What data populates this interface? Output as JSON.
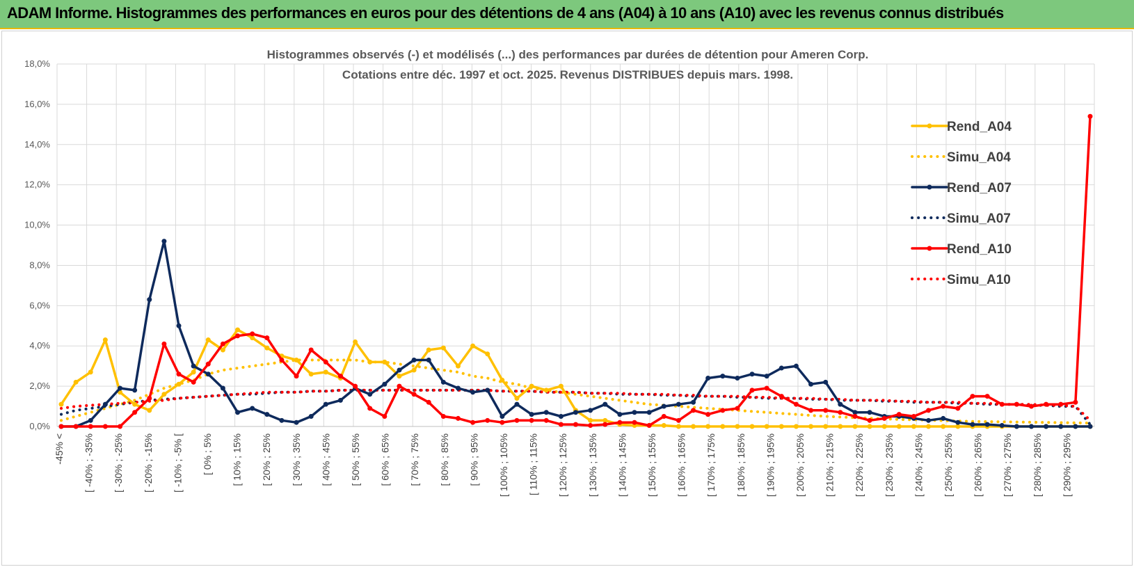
{
  "banner": {
    "title": "ADAM Informe. Histogrammes des performances en euros pour des détentions de 4 ans (A04) à 10 ans (A10) avec les revenus connus distribués",
    "background": "#7dc87d",
    "accent": "#e8b800"
  },
  "chart_data": {
    "type": "line",
    "title_lines": [
      "Histogrammes observés (-) et modélisés (...) des performances par durées de détention pour Ameren Corp.",
      "Cotations entre déc. 1997 et oct. 2025. Revenus DISTRIBUES depuis mars. 1998."
    ],
    "ylim": [
      0,
      18
    ],
    "yticks": [
      0,
      2,
      4,
      6,
      8,
      10,
      12,
      14,
      16,
      18
    ],
    "ytick_labels": [
      "0,0%",
      "2,0%",
      "4,0%",
      "6,0%",
      "8,0%",
      "10,0%",
      "12,0%",
      "14,0%",
      "16,0%",
      "18,0%"
    ],
    "grid": true,
    "legend_position": "top-right",
    "x_labels": [
      "-45% <",
      "[ -40% ; -35%",
      "[ -30% ; -25%",
      "[ -20% ; -15%",
      "[ -10% ; -5% [",
      "[ 0% ; 5%",
      "[ 10% ; 15%",
      "[ 20% ; 25%",
      "[ 30% ; 35%",
      "[ 40% ; 45%",
      "[ 50% ; 55%",
      "[ 60% ; 65%",
      "[ 70% ; 75%",
      "[ 80% ; 85%",
      "[ 90% ; 95%",
      "[ 100% ; 105%",
      "[ 110% ; 115%",
      "[ 120% ; 125%",
      "[ 130% ; 135%",
      "[ 140% ; 145%",
      "[ 150% ; 155%",
      "[ 160% ; 165%",
      "[ 170% ; 175%",
      "[ 180% ; 185%",
      "[ 190% ; 195%",
      "[ 200% ; 205%",
      "[ 210% ; 215%",
      "[ 220% ; 225%",
      "[ 230% ; 235%",
      "[ 240% ; 245%",
      "[ 250% ; 255%",
      "[ 260% ; 265%",
      "[ 270% ; 275%",
      "[ 280% ; 285%",
      "[ 290% ; 295%"
    ],
    "series": [
      {
        "name": "Rend_A04",
        "color": "#ffc000",
        "style": "solid",
        "markers": true,
        "values": [
          1.1,
          2.2,
          2.7,
          4.3,
          1.7,
          1.1,
          0.8,
          1.6,
          2.1,
          2.7,
          4.3,
          3.8,
          4.8,
          4.4,
          3.9,
          3.5,
          3.3,
          2.6,
          2.7,
          2.4,
          4.2,
          3.2,
          3.2,
          2.5,
          2.8,
          3.8,
          3.9,
          3.0,
          4.0,
          3.6,
          2.3,
          1.4,
          2.0,
          1.8,
          2.0,
          0.8,
          0.3,
          0.3,
          0.1,
          0.05,
          0.05,
          0.05,
          0,
          0,
          0,
          0,
          0,
          0,
          0,
          0,
          0,
          0,
          0,
          0,
          0,
          0,
          0,
          0,
          0,
          0,
          0,
          0,
          0,
          0,
          0,
          0,
          0,
          0,
          0,
          0,
          0
        ]
      },
      {
        "name": "Simu_A04",
        "color": "#ffc000",
        "style": "dotted",
        "markers": false,
        "values": [
          0.3,
          0.5,
          0.7,
          0.9,
          1.1,
          1.3,
          1.6,
          1.9,
          2.1,
          2.3,
          2.6,
          2.8,
          2.9,
          3.0,
          3.1,
          3.2,
          3.3,
          3.3,
          3.3,
          3.3,
          3.3,
          3.2,
          3.2,
          3.1,
          3.0,
          2.9,
          2.8,
          2.7,
          2.5,
          2.4,
          2.2,
          2.1,
          1.9,
          1.8,
          1.7,
          1.6,
          1.5,
          1.4,
          1.3,
          1.2,
          1.1,
          1.05,
          1.0,
          0.95,
          0.9,
          0.85,
          0.8,
          0.75,
          0.7,
          0.65,
          0.6,
          0.55,
          0.5,
          0.47,
          0.44,
          0.41,
          0.38,
          0.35,
          0.33,
          0.31,
          0.29,
          0.27,
          0.25,
          0.24,
          0.23,
          0.22,
          0.21,
          0.2,
          0.19,
          0.18,
          0.17
        ]
      },
      {
        "name": "Rend_A07",
        "color": "#0e2a5c",
        "style": "solid",
        "markers": true,
        "values": [
          0,
          0,
          0.3,
          1.1,
          1.9,
          1.8,
          6.3,
          9.2,
          5.0,
          3.0,
          2.6,
          1.9,
          0.7,
          0.9,
          0.6,
          0.3,
          0.2,
          0.5,
          1.1,
          1.3,
          1.9,
          1.6,
          2.1,
          2.8,
          3.3,
          3.3,
          2.2,
          1.9,
          1.7,
          1.8,
          0.5,
          1.1,
          0.6,
          0.7,
          0.5,
          0.7,
          0.8,
          1.1,
          0.6,
          0.7,
          0.7,
          1.0,
          1.1,
          1.2,
          2.4,
          2.5,
          2.4,
          2.6,
          2.5,
          2.9,
          3.0,
          2.1,
          2.2,
          1.1,
          0.7,
          0.7,
          0.5,
          0.5,
          0.4,
          0.3,
          0.4,
          0.2,
          0.1,
          0.1,
          0.05,
          0,
          0,
          0,
          0,
          0,
          0
        ]
      },
      {
        "name": "Simu_A07",
        "color": "#0e2a5c",
        "style": "dotted",
        "markers": false,
        "values": [
          0.6,
          0.8,
          0.9,
          1.0,
          1.1,
          1.2,
          1.3,
          1.35,
          1.4,
          1.45,
          1.5,
          1.55,
          1.6,
          1.6,
          1.65,
          1.7,
          1.7,
          1.75,
          1.75,
          1.8,
          1.8,
          1.8,
          1.8,
          1.8,
          1.8,
          1.8,
          1.8,
          1.8,
          1.8,
          1.8,
          1.75,
          1.75,
          1.75,
          1.7,
          1.7,
          1.7,
          1.65,
          1.65,
          1.6,
          1.6,
          1.6,
          1.55,
          1.55,
          1.5,
          1.5,
          1.5,
          1.45,
          1.45,
          1.4,
          1.4,
          1.4,
          1.35,
          1.35,
          1.3,
          1.3,
          1.3,
          1.25,
          1.25,
          1.2,
          1.2,
          1.2,
          1.15,
          1.15,
          1.1,
          1.1,
          1.1,
          1.05,
          1.05,
          1.0,
          1.0,
          0.1
        ]
      },
      {
        "name": "Rend_A10",
        "color": "#ff0000",
        "style": "solid",
        "markers": true,
        "values": [
          0,
          0,
          0,
          0,
          0,
          0.7,
          1.4,
          4.1,
          2.6,
          2.2,
          3.1,
          4.1,
          4.5,
          4.6,
          4.4,
          3.3,
          2.5,
          3.8,
          3.2,
          2.5,
          2.0,
          0.9,
          0.5,
          2.0,
          1.6,
          1.2,
          0.5,
          0.4,
          0.2,
          0.3,
          0.2,
          0.3,
          0.3,
          0.3,
          0.1,
          0.1,
          0.05,
          0.1,
          0.2,
          0.2,
          0.05,
          0.5,
          0.3,
          0.8,
          0.6,
          0.8,
          0.9,
          1.8,
          1.9,
          1.5,
          1.1,
          0.8,
          0.8,
          0.7,
          0.5,
          0.3,
          0.4,
          0.6,
          0.5,
          0.8,
          1.0,
          0.9,
          1.5,
          1.5,
          1.1,
          1.1,
          1.0,
          1.1,
          1.1,
          1.2,
          15.4
        ]
      },
      {
        "name": "Simu_A10",
        "color": "#ff0000",
        "style": "dotted",
        "markers": false,
        "values": [
          0.9,
          1.0,
          1.05,
          1.1,
          1.15,
          1.2,
          1.25,
          1.3,
          1.4,
          1.45,
          1.5,
          1.55,
          1.6,
          1.65,
          1.7,
          1.7,
          1.7,
          1.75,
          1.75,
          1.8,
          1.8,
          1.8,
          1.8,
          1.8,
          1.8,
          1.8,
          1.8,
          1.8,
          1.8,
          1.8,
          1.75,
          1.75,
          1.75,
          1.7,
          1.7,
          1.7,
          1.65,
          1.65,
          1.65,
          1.6,
          1.6,
          1.6,
          1.55,
          1.55,
          1.5,
          1.5,
          1.5,
          1.45,
          1.45,
          1.4,
          1.4,
          1.4,
          1.35,
          1.35,
          1.3,
          1.3,
          1.3,
          1.25,
          1.25,
          1.2,
          1.2,
          1.2,
          1.15,
          1.15,
          1.1,
          1.1,
          1.1,
          1.05,
          1.05,
          1.0,
          0.3
        ]
      }
    ]
  }
}
